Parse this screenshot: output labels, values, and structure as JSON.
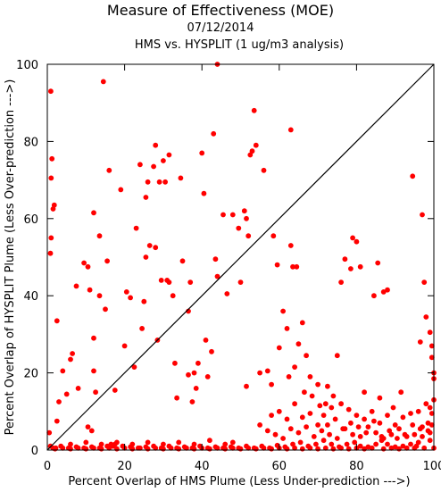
{
  "chart_data": {
    "type": "scatter",
    "title": "Measure of Effectiveness (MOE)",
    "subtitle_date": "07/12/2014",
    "subtitle": "HMS vs. HYSPLIT  (1 ug/m3 analysis)",
    "xlabel": "Percent Overlap of HMS Plume (Less Under-prediction --->)",
    "ylabel": "Percent Overlap of HYSPLIT Plume (Less Over-prediction --->)",
    "xlim": [
      0,
      100
    ],
    "ylim": [
      0,
      100
    ],
    "xticks": [
      0,
      20,
      40,
      60,
      80,
      100
    ],
    "yticks": [
      0,
      20,
      40,
      60,
      80,
      100
    ],
    "grid": false,
    "reference_line": "y = x",
    "colors": {
      "points": "#ff0000",
      "line": "#000000",
      "frame": "#000000"
    },
    "series": [
      {
        "points": [
          [
            0.9,
            93.0
          ],
          [
            1.2,
            75.5
          ],
          [
            1.0,
            70.5
          ],
          [
            1.8,
            63.5
          ],
          [
            1.5,
            62.5
          ],
          [
            1.0,
            55.0
          ],
          [
            0.8,
            51.0
          ],
          [
            2.5,
            33.5
          ],
          [
            0.5,
            4.5
          ],
          [
            0.8,
            1.0
          ],
          [
            1.5,
            0.5
          ],
          [
            2.2,
            0.5
          ],
          [
            2.5,
            7.5
          ],
          [
            3.0,
            12.5
          ],
          [
            4.0,
            20.5
          ],
          [
            5.0,
            14.5
          ],
          [
            6.5,
            25.0
          ],
          [
            6.0,
            23.5
          ],
          [
            7.5,
            42.5
          ],
          [
            8.0,
            16.0
          ],
          [
            9.5,
            48.5
          ],
          [
            10.5,
            47.5
          ],
          [
            11.0,
            41.5
          ],
          [
            12.0,
            61.5
          ],
          [
            13.5,
            40.0
          ],
          [
            13.5,
            55.5
          ],
          [
            12.0,
            29.0
          ],
          [
            12.0,
            20.5
          ],
          [
            12.5,
            15.0
          ],
          [
            10.5,
            6.0
          ],
          [
            11.5,
            5.0
          ],
          [
            14.5,
            95.5
          ],
          [
            15.0,
            36.5
          ],
          [
            15.5,
            49.0
          ],
          [
            16.0,
            72.5
          ],
          [
            16.5,
            1.5
          ],
          [
            17.0,
            1.0
          ],
          [
            17.5,
            15.5
          ],
          [
            19.0,
            67.5
          ],
          [
            20.0,
            27.0
          ],
          [
            20.5,
            41.0
          ],
          [
            21.5,
            39.5
          ],
          [
            22.5,
            21.5
          ],
          [
            23.0,
            57.5
          ],
          [
            24.0,
            74.0
          ],
          [
            24.5,
            31.5
          ],
          [
            25.0,
            38.5
          ],
          [
            25.5,
            65.5
          ],
          [
            25.5,
            50.0
          ],
          [
            26.0,
            69.5
          ],
          [
            26.5,
            53.0
          ],
          [
            27.5,
            73.5
          ],
          [
            28.0,
            79.0
          ],
          [
            28.0,
            52.5
          ],
          [
            28.5,
            28.5
          ],
          [
            29.0,
            69.5
          ],
          [
            29.5,
            44.0
          ],
          [
            30.0,
            75.0
          ],
          [
            30.5,
            69.5
          ],
          [
            31.0,
            44.0
          ],
          [
            31.5,
            76.5
          ],
          [
            31.5,
            43.5
          ],
          [
            32.5,
            40.0
          ],
          [
            33.0,
            22.5
          ],
          [
            33.5,
            13.5
          ],
          [
            34.5,
            70.5
          ],
          [
            35.0,
            49.0
          ],
          [
            36.5,
            19.5
          ],
          [
            36.5,
            36.0
          ],
          [
            37.0,
            43.5
          ],
          [
            37.5,
            12.5
          ],
          [
            38.0,
            20.0
          ],
          [
            38.5,
            16.0
          ],
          [
            39.0,
            22.5
          ],
          [
            40.0,
            77.0
          ],
          [
            40.5,
            66.5
          ],
          [
            41.0,
            28.5
          ],
          [
            41.5,
            19.0
          ],
          [
            42.5,
            25.5
          ],
          [
            43.0,
            82.0
          ],
          [
            43.5,
            49.5
          ],
          [
            44.0,
            100.0
          ],
          [
            44.0,
            45.0
          ],
          [
            45.5,
            61.0
          ],
          [
            46.5,
            40.5
          ],
          [
            48.0,
            61.0
          ],
          [
            49.5,
            57.5
          ],
          [
            50.0,
            43.5
          ],
          [
            51.0,
            62.0
          ],
          [
            51.5,
            60.0
          ],
          [
            51.5,
            16.5
          ],
          [
            52.0,
            55.5
          ],
          [
            52.5,
            76.5
          ],
          [
            53.0,
            77.5
          ],
          [
            53.5,
            88.0
          ],
          [
            54.0,
            79.0
          ],
          [
            55.0,
            20.0
          ],
          [
            56.0,
            72.5
          ],
          [
            57.0,
            20.5
          ],
          [
            58.0,
            17.0
          ],
          [
            58.5,
            55.5
          ],
          [
            59.5,
            48.0
          ],
          [
            60.0,
            26.5
          ],
          [
            61.0,
            36.0
          ],
          [
            62.0,
            31.5
          ],
          [
            62.5,
            19.0
          ],
          [
            63.0,
            83.0
          ],
          [
            63.0,
            53.0
          ],
          [
            63.5,
            47.5
          ],
          [
            64.0,
            21.5
          ],
          [
            64.5,
            47.5
          ],
          [
            65.0,
            27.5
          ],
          [
            66.0,
            33.0
          ],
          [
            67.0,
            24.5
          ],
          [
            68.0,
            19.0
          ],
          [
            70.0,
            6.5
          ],
          [
            71.5,
            9.0
          ],
          [
            72.5,
            6.5
          ],
          [
            73.5,
            11.0
          ],
          [
            75.0,
            24.5
          ],
          [
            76.0,
            43.5
          ],
          [
            77.0,
            49.5
          ],
          [
            78.5,
            47.0
          ],
          [
            79.0,
            55.0
          ],
          [
            80.0,
            54.0
          ],
          [
            81.0,
            47.5
          ],
          [
            82.0,
            15.0
          ],
          [
            84.5,
            40.0
          ],
          [
            85.5,
            48.5
          ],
          [
            86.0,
            13.5
          ],
          [
            87.0,
            41.0
          ],
          [
            88.0,
            41.5
          ],
          [
            89.5,
            11.0
          ],
          [
            91.5,
            15.0
          ],
          [
            94.5,
            71.0
          ],
          [
            95.5,
            1.0
          ],
          [
            96.5,
            28.0
          ],
          [
            97.0,
            61.0
          ],
          [
            97.5,
            43.5
          ],
          [
            98.0,
            34.5
          ],
          [
            99.0,
            30.5
          ],
          [
            99.5,
            27.0
          ],
          [
            99.5,
            24.0
          ],
          [
            100.0,
            20.0
          ],
          [
            100.0,
            18.5
          ],
          [
            99.0,
            11.0
          ],
          [
            99.5,
            9.5
          ],
          [
            99.5,
            6.5
          ],
          [
            98.5,
            5.0
          ],
          [
            97.0,
            3.5
          ],
          [
            96.0,
            2.0
          ],
          [
            94.0,
            1.5
          ],
          [
            92.0,
            1.0
          ],
          [
            90.0,
            0.8
          ],
          [
            88.0,
            1.5
          ],
          [
            86.5,
            2.5
          ],
          [
            85.0,
            1.5
          ],
          [
            83.0,
            0.8
          ],
          [
            81.0,
            1.0
          ],
          [
            79.5,
            2.0
          ],
          [
            77.5,
            1.5
          ],
          [
            75.5,
            0.8
          ],
          [
            73.5,
            1.5
          ],
          [
            71.5,
            2.5
          ],
          [
            69.5,
            1.5
          ],
          [
            67.5,
            1.0
          ],
          [
            65.5,
            2.0
          ],
          [
            63.5,
            1.5
          ],
          [
            61.5,
            0.8
          ],
          [
            59.5,
            1.2
          ],
          [
            57.5,
            0.5
          ],
          [
            55.5,
            1.0
          ],
          [
            53.5,
            0.5
          ],
          [
            51.5,
            1.0
          ],
          [
            49.5,
            0.5
          ],
          [
            47.5,
            0.8
          ],
          [
            45.5,
            0.5
          ],
          [
            43.5,
            0.8
          ],
          [
            41.5,
            0.5
          ],
          [
            39.5,
            1.0
          ],
          [
            37.5,
            0.5
          ],
          [
            35.5,
            0.8
          ],
          [
            33.5,
            0.5
          ],
          [
            31.5,
            1.0
          ],
          [
            29.5,
            0.5
          ],
          [
            27.5,
            1.0
          ],
          [
            25.5,
            0.8
          ],
          [
            23.5,
            0.5
          ],
          [
            21.5,
            0.8
          ],
          [
            19.5,
            1.0
          ],
          [
            17.5,
            1.5
          ],
          [
            15.5,
            1.0
          ],
          [
            13.5,
            0.5
          ],
          [
            11.5,
            0.8
          ],
          [
            9.5,
            0.5
          ],
          [
            7.5,
            0.8
          ],
          [
            5.5,
            0.5
          ],
          [
            3.5,
            1.0
          ],
          [
            100.0,
            0.5
          ],
          [
            99.0,
            2.5
          ],
          [
            97.5,
            0.5
          ],
          [
            95.0,
            0.5
          ],
          [
            93.0,
            0.5
          ],
          [
            91.0,
            0.3
          ],
          [
            89.0,
            0.5
          ],
          [
            87.0,
            0.3
          ],
          [
            84.0,
            0.5
          ],
          [
            82.0,
            0.3
          ],
          [
            80.0,
            0.5
          ],
          [
            78.0,
            0.3
          ],
          [
            76.0,
            0.5
          ],
          [
            74.0,
            0.3
          ],
          [
            72.0,
            0.5
          ],
          [
            70.0,
            0.3
          ],
          [
            68.0,
            0.5
          ],
          [
            66.0,
            0.3
          ],
          [
            64.0,
            0.5
          ],
          [
            62.0,
            0.3
          ],
          [
            60.0,
            0.5
          ],
          [
            58.0,
            0.3
          ],
          [
            56.0,
            0.5
          ],
          [
            54.0,
            0.3
          ],
          [
            52.0,
            0.5
          ],
          [
            50.0,
            0.3
          ],
          [
            48.0,
            0.5
          ],
          [
            46.0,
            0.3
          ],
          [
            44.0,
            0.5
          ],
          [
            42.0,
            0.3
          ],
          [
            40.0,
            0.5
          ],
          [
            38.0,
            0.3
          ],
          [
            36.0,
            0.5
          ],
          [
            34.0,
            0.3
          ],
          [
            32.0,
            0.5
          ],
          [
            30.0,
            0.3
          ],
          [
            28.0,
            0.5
          ],
          [
            26.0,
            0.3
          ],
          [
            24.0,
            0.5
          ],
          [
            22.0,
            0.3
          ],
          [
            20.0,
            0.5
          ],
          [
            18.0,
            0.3
          ],
          [
            16.0,
            0.5
          ],
          [
            14.0,
            0.3
          ],
          [
            12.0,
            0.5
          ],
          [
            10.0,
            0.3
          ],
          [
            8.0,
            0.5
          ],
          [
            6.0,
            0.3
          ],
          [
            4.0,
            0.5
          ],
          [
            2.0,
            0.3
          ],
          [
            66.0,
            8.5
          ],
          [
            68.0,
            9.5
          ],
          [
            70.5,
            11.5
          ],
          [
            72.0,
            12.0
          ],
          [
            74.5,
            8.0
          ],
          [
            76.5,
            5.5
          ],
          [
            78.5,
            7.0
          ],
          [
            80.5,
            6.0
          ],
          [
            82.5,
            4.5
          ],
          [
            84.5,
            7.5
          ],
          [
            86.5,
            3.5
          ],
          [
            88.5,
            5.0
          ],
          [
            90.5,
            3.0
          ],
          [
            92.5,
            4.0
          ],
          [
            94.5,
            6.5
          ],
          [
            96.5,
            5.5
          ],
          [
            98.5,
            7.0
          ],
          [
            100.0,
            13.0
          ],
          [
            62.0,
            8.0
          ],
          [
            60.0,
            10.0
          ],
          [
            58.0,
            9.0
          ],
          [
            64.0,
            12.0
          ],
          [
            66.5,
            15.0
          ],
          [
            68.5,
            14.0
          ],
          [
            70.0,
            17.0
          ],
          [
            72.5,
            16.5
          ],
          [
            74.0,
            14.0
          ],
          [
            76.0,
            12.0
          ],
          [
            78.0,
            10.5
          ],
          [
            80.0,
            9.0
          ],
          [
            82.0,
            8.0
          ],
          [
            84.0,
            10.0
          ],
          [
            86.0,
            7.0
          ],
          [
            88.0,
            9.0
          ],
          [
            90.0,
            6.5
          ],
          [
            92.0,
            8.5
          ],
          [
            94.0,
            9.5
          ],
          [
            96.0,
            10.0
          ],
          [
            98.0,
            12.0
          ],
          [
            55.0,
            6.5
          ],
          [
            57.0,
            5.0
          ],
          [
            59.0,
            4.0
          ],
          [
            61.0,
            3.0
          ],
          [
            63.0,
            5.5
          ],
          [
            65.0,
            4.5
          ],
          [
            67.0,
            6.0
          ],
          [
            69.0,
            3.5
          ],
          [
            71.0,
            5.0
          ],
          [
            73.0,
            4.0
          ],
          [
            75.0,
            3.0
          ],
          [
            77.0,
            5.5
          ],
          [
            79.0,
            4.0
          ],
          [
            81.0,
            3.5
          ],
          [
            83.0,
            6.0
          ],
          [
            85.0,
            4.5
          ],
          [
            87.0,
            3.0
          ],
          [
            89.0,
            4.0
          ],
          [
            91.0,
            5.5
          ],
          [
            93.0,
            3.5
          ],
          [
            95.0,
            4.0
          ],
          [
            97.0,
            6.0
          ],
          [
            99.0,
            4.5
          ],
          [
            48.0,
            2.0
          ],
          [
            46.0,
            1.5
          ],
          [
            42.0,
            2.5
          ],
          [
            38.0,
            1.5
          ],
          [
            34.0,
            2.0
          ],
          [
            30.0,
            1.5
          ],
          [
            26.0,
            2.0
          ],
          [
            22.0,
            1.5
          ],
          [
            18.0,
            2.0
          ],
          [
            14.0,
            1.5
          ],
          [
            10.0,
            2.0
          ],
          [
            6.0,
            1.5
          ]
        ]
      }
    ]
  }
}
